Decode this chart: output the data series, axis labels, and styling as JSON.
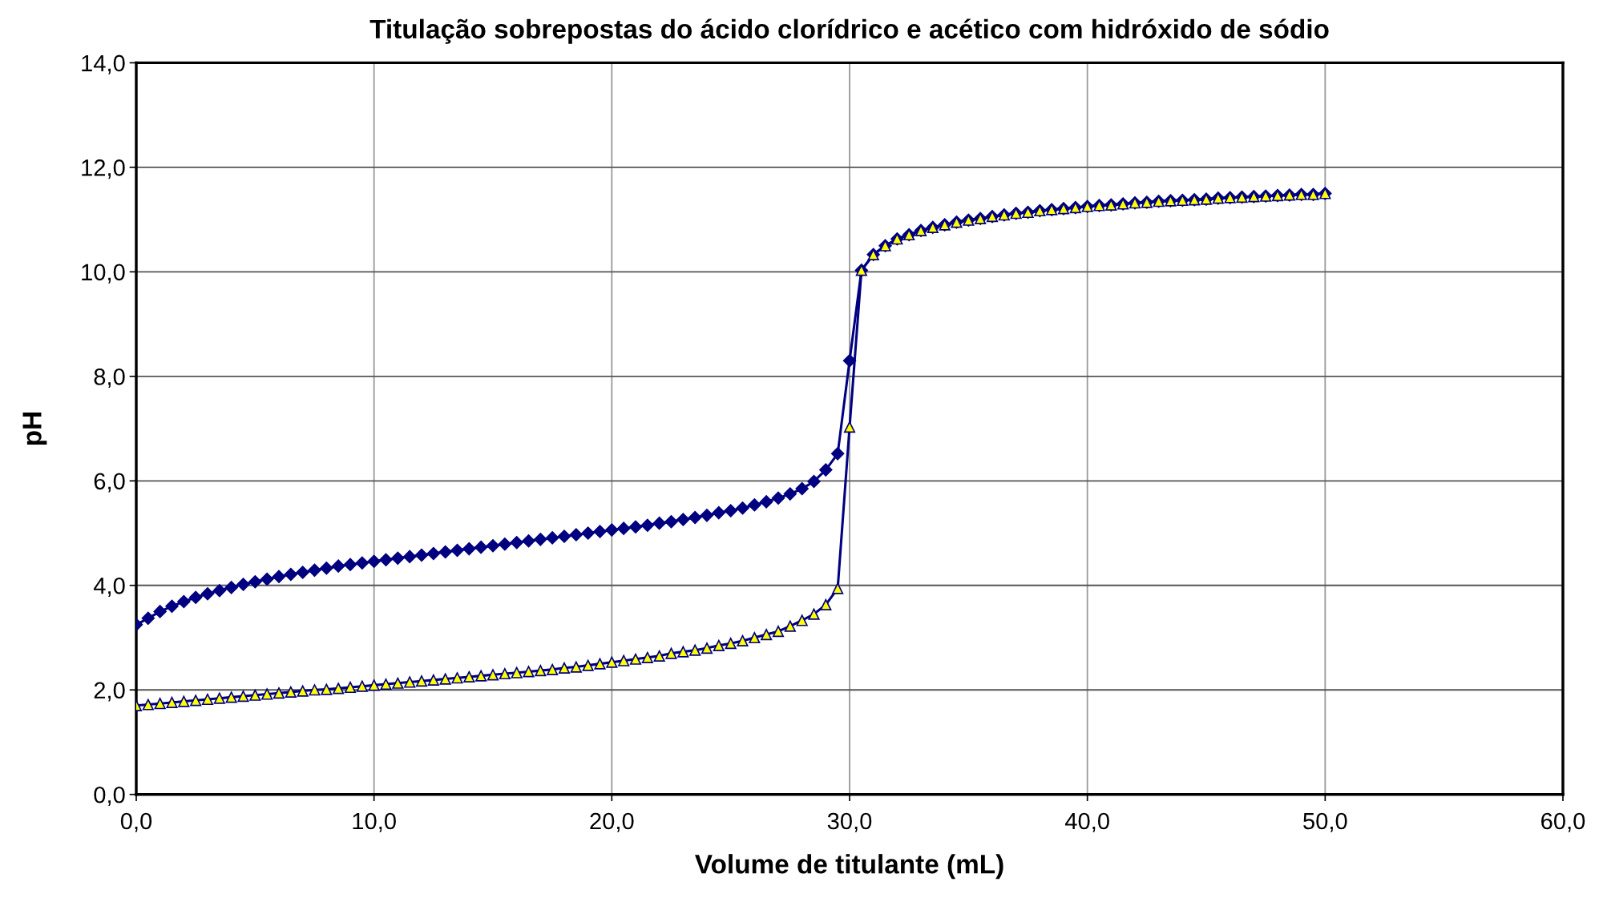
{
  "chart_data": {
    "type": "line",
    "title": "Titulação sobrepostas do ácido clorídrico e acético com hidróxido de sódio",
    "xlabel": "Volume de titulante (mL)",
    "ylabel": "pH",
    "x": [
      0,
      0.5,
      1,
      1.5,
      2,
      2.5,
      3,
      3.5,
      4,
      4.5,
      5,
      5.5,
      6,
      6.5,
      7,
      7.5,
      8,
      8.5,
      9,
      9.5,
      10,
      10.5,
      11,
      11.5,
      12,
      12.5,
      13,
      13.5,
      14,
      14.5,
      15,
      15.5,
      16,
      16.5,
      17,
      17.5,
      18,
      18.5,
      19,
      19.5,
      20,
      20.5,
      21,
      21.5,
      22,
      22.5,
      23,
      23.5,
      24,
      24.5,
      25,
      25.5,
      26,
      26.5,
      27,
      27.5,
      28,
      28.5,
      29,
      29.5,
      30,
      30.5,
      31,
      31.5,
      32,
      32.5,
      33,
      33.5,
      34,
      34.5,
      35,
      35.5,
      36,
      36.5,
      37,
      37.5,
      38,
      38.5,
      39,
      39.5,
      40,
      40.5,
      41,
      41.5,
      42,
      42.5,
      43,
      43.5,
      44,
      44.5,
      45,
      45.5,
      46,
      46.5,
      47,
      47.5,
      48,
      48.5,
      49,
      49.5,
      50
    ],
    "series": [
      {
        "color": "#000080",
        "marker": "diamond",
        "values": [
          3.25,
          3.37,
          3.5,
          3.6,
          3.69,
          3.77,
          3.84,
          3.9,
          3.96,
          4.02,
          4.07,
          4.12,
          4.17,
          4.21,
          4.25,
          4.29,
          4.33,
          4.37,
          4.4,
          4.43,
          4.46,
          4.49,
          4.52,
          4.55,
          4.58,
          4.61,
          4.64,
          4.67,
          4.7,
          4.73,
          4.76,
          4.79,
          4.82,
          4.85,
          4.88,
          4.91,
          4.94,
          4.97,
          5.0,
          5.03,
          5.06,
          5.09,
          5.12,
          5.15,
          5.19,
          5.22,
          5.26,
          5.3,
          5.34,
          5.39,
          5.43,
          5.48,
          5.54,
          5.6,
          5.67,
          5.75,
          5.85,
          5.99,
          6.21,
          6.52,
          8.3,
          10.03,
          10.33,
          10.5,
          10.63,
          10.71,
          10.79,
          10.85,
          10.9,
          10.95,
          10.99,
          11.02,
          11.06,
          11.09,
          11.12,
          11.14,
          11.17,
          11.19,
          11.21,
          11.23,
          11.25,
          11.27,
          11.28,
          11.3,
          11.32,
          11.33,
          11.35,
          11.36,
          11.37,
          11.38,
          11.39,
          11.41,
          11.42,
          11.43,
          11.44,
          11.45,
          11.46,
          11.47,
          11.48,
          11.48,
          11.5
        ]
      },
      {
        "color": "#ffff00",
        "marker": "triangle",
        "values": [
          1.7,
          1.72,
          1.74,
          1.76,
          1.78,
          1.8,
          1.82,
          1.84,
          1.86,
          1.88,
          1.9,
          1.92,
          1.94,
          1.96,
          1.98,
          2.0,
          2.01,
          2.03,
          2.05,
          2.07,
          2.09,
          2.11,
          2.13,
          2.15,
          2.17,
          2.19,
          2.21,
          2.23,
          2.25,
          2.27,
          2.29,
          2.31,
          2.33,
          2.35,
          2.37,
          2.39,
          2.42,
          2.44,
          2.47,
          2.5,
          2.53,
          2.56,
          2.59,
          2.62,
          2.65,
          2.7,
          2.73,
          2.76,
          2.8,
          2.85,
          2.89,
          2.94,
          3.0,
          3.06,
          3.12,
          3.22,
          3.33,
          3.45,
          3.63,
          3.94,
          7.03,
          10.03,
          10.33,
          10.5,
          10.63,
          10.71,
          10.79,
          10.85,
          10.9,
          10.95,
          10.99,
          11.02,
          11.06,
          11.09,
          11.12,
          11.14,
          11.17,
          11.19,
          11.21,
          11.23,
          11.25,
          11.27,
          11.28,
          11.3,
          11.32,
          11.33,
          11.35,
          11.36,
          11.37,
          11.38,
          11.39,
          11.41,
          11.42,
          11.43,
          11.44,
          11.45,
          11.46,
          11.47,
          11.48,
          11.48,
          11.5
        ]
      }
    ],
    "xlim": [
      0,
      60
    ],
    "xticks": [
      {
        "value": 0,
        "label": "0,0"
      },
      {
        "value": 10,
        "label": "10,0"
      },
      {
        "value": 20,
        "label": "20,0"
      },
      {
        "value": 30,
        "label": "30,0"
      },
      {
        "value": 40,
        "label": "40,0"
      },
      {
        "value": 50,
        "label": "50,0"
      },
      {
        "value": 60,
        "label": "60,0"
      }
    ],
    "ylim": [
      0,
      14
    ],
    "yticks": [
      {
        "value": 0,
        "label": "0,0"
      },
      {
        "value": 2,
        "label": "2,0"
      },
      {
        "value": 4,
        "label": "4,0"
      },
      {
        "value": 6,
        "label": "6,0"
      },
      {
        "value": 8,
        "label": "8,0"
      },
      {
        "value": 10,
        "label": "10,0"
      },
      {
        "value": 12,
        "label": "12,0"
      },
      {
        "value": 14,
        "label": "14,0"
      }
    ],
    "grid": true,
    "legend": false,
    "line_style": "solid"
  }
}
